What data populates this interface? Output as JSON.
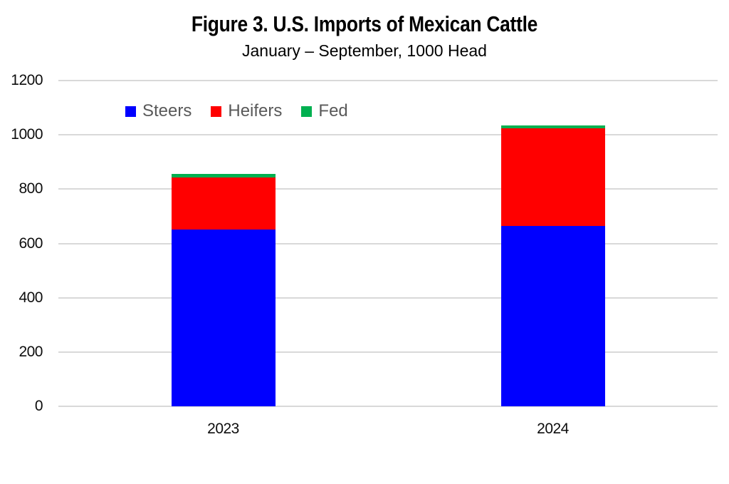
{
  "chart_data": {
    "type": "bar",
    "stacked": true,
    "title": "Figure 3. U.S. Imports of Mexican Cattle",
    "subtitle": "January – September, 1000 Head",
    "categories": [
      "2023",
      "2024"
    ],
    "series": [
      {
        "name": "Steers",
        "color": "#0000FF",
        "values": [
          650,
          665
        ]
      },
      {
        "name": "Heifers",
        "color": "#FF0000",
        "values": [
          193,
          358
        ]
      },
      {
        "name": "Fed",
        "color": "#00B050",
        "values": [
          12,
          12
        ]
      }
    ],
    "totals": [
      855,
      1035
    ],
    "xlabel": "",
    "ylabel": "",
    "ylim": [
      0,
      1200
    ],
    "yticks": [
      0,
      200,
      400,
      600,
      800,
      1000,
      1200
    ],
    "grid": true,
    "gridline_color": "#D9D9D9",
    "legend_position": "top-left-inside",
    "legend_text_color": "#595959",
    "axis_text_color": "#0d0d0d"
  }
}
